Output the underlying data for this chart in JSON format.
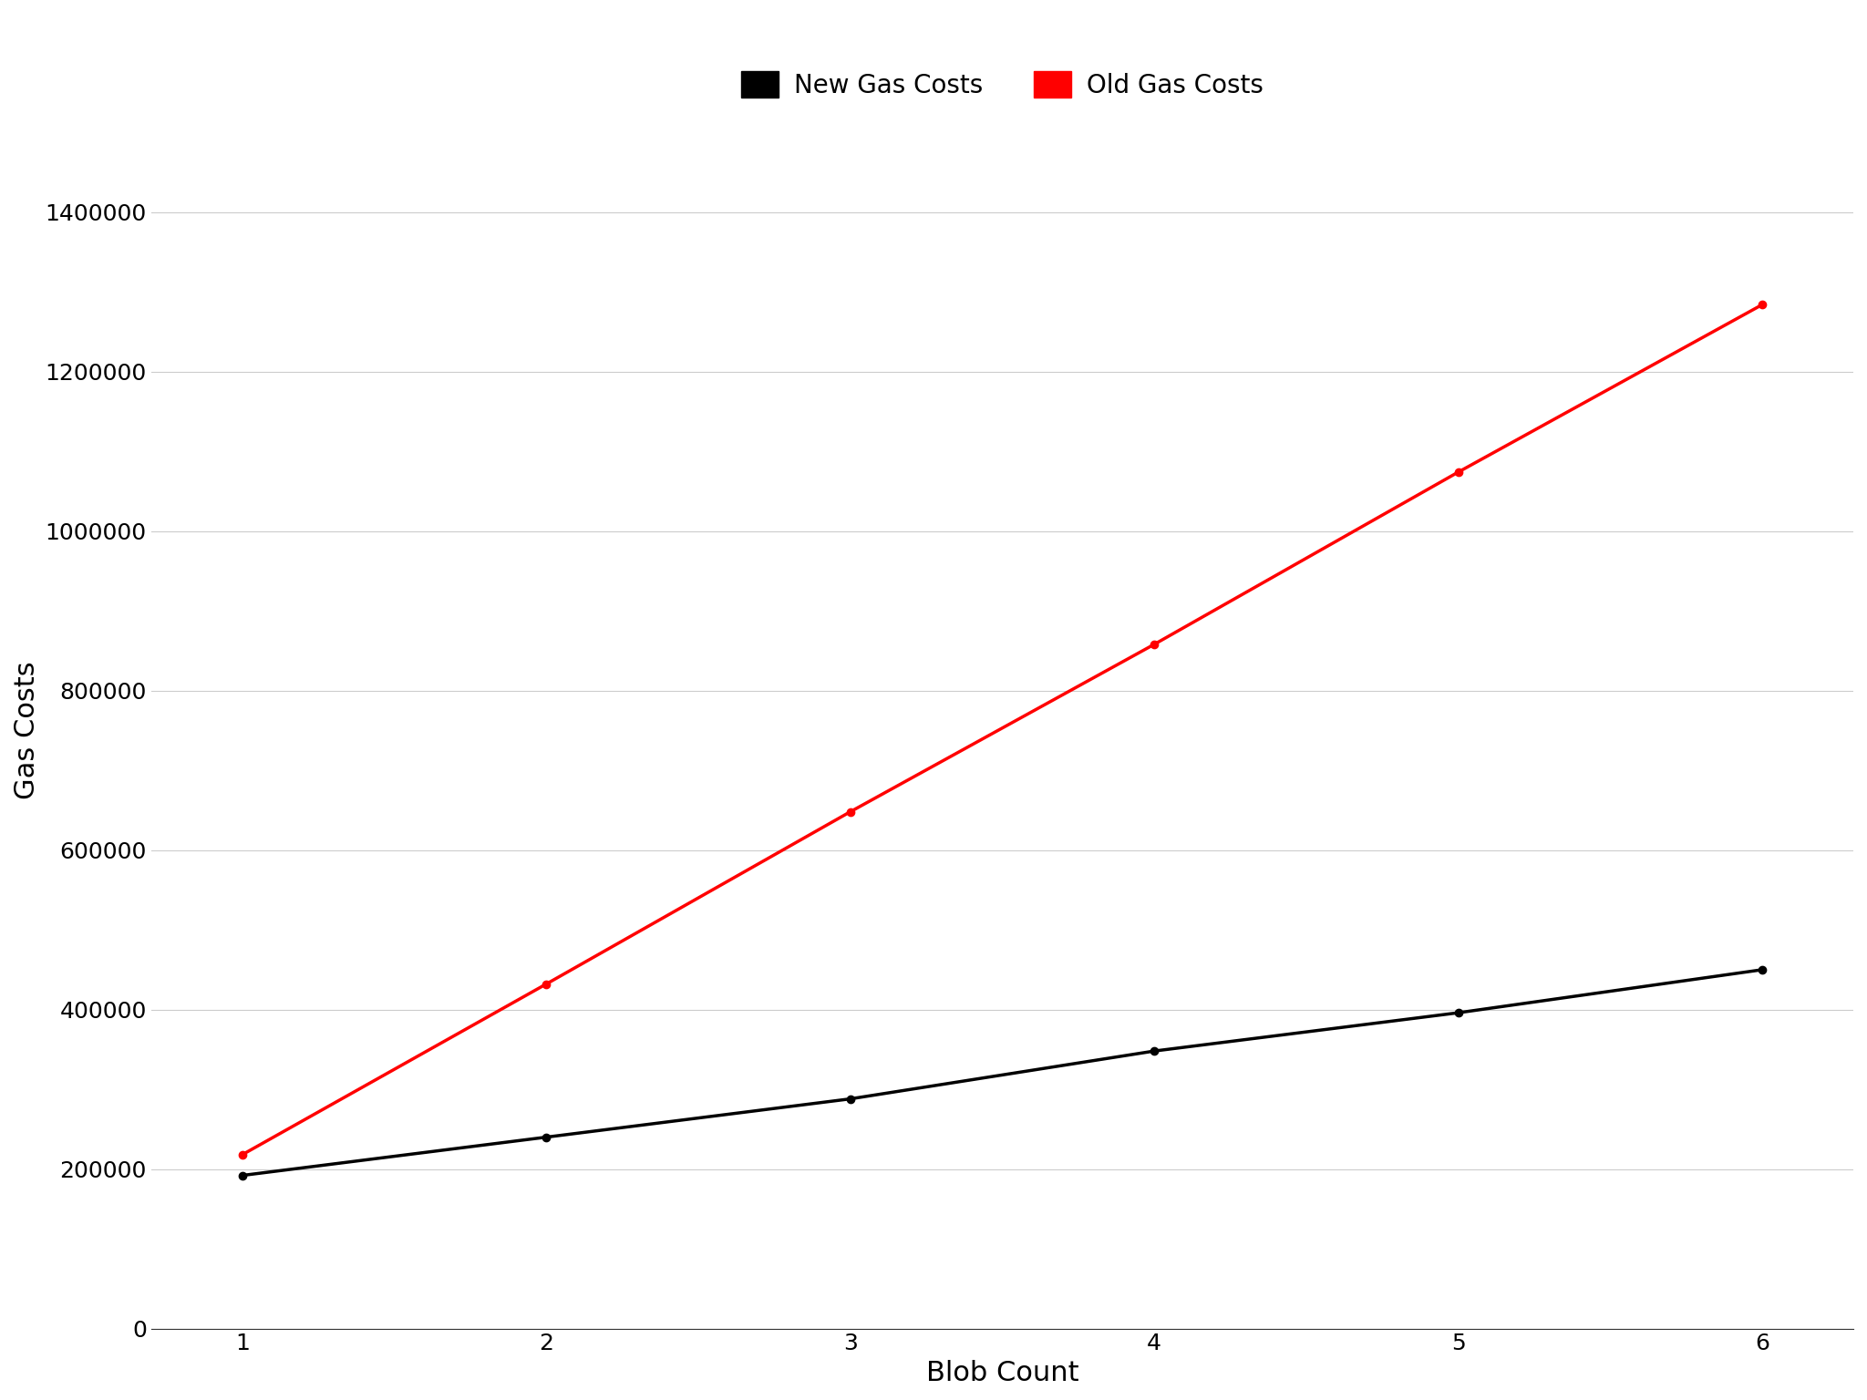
{
  "x": [
    1,
    2,
    3,
    4,
    5,
    6
  ],
  "new_gas_costs": [
    192000,
    240000,
    288000,
    348000,
    396000,
    450000
  ],
  "old_gas_costs": [
    218000,
    432000,
    648000,
    858000,
    1074000,
    1284000
  ],
  "new_color": "#000000",
  "old_color": "#ff0000",
  "xlabel": "Blob Count",
  "ylabel": "Gas Costs",
  "legend_new": "New Gas Costs",
  "legend_old": "Old Gas Costs",
  "xlim": [
    0.7,
    6.3
  ],
  "ylim": [
    0,
    1500000
  ],
  "yticks": [
    0,
    200000,
    400000,
    600000,
    800000,
    1000000,
    1200000,
    1400000
  ],
  "xticks": [
    1,
    2,
    3,
    4,
    5,
    6
  ],
  "marker": "o",
  "markersize": 6,
  "linewidth": 2.5,
  "background_color": "#ffffff",
  "label_fontsize": 22,
  "tick_fontsize": 18,
  "legend_fontsize": 20
}
